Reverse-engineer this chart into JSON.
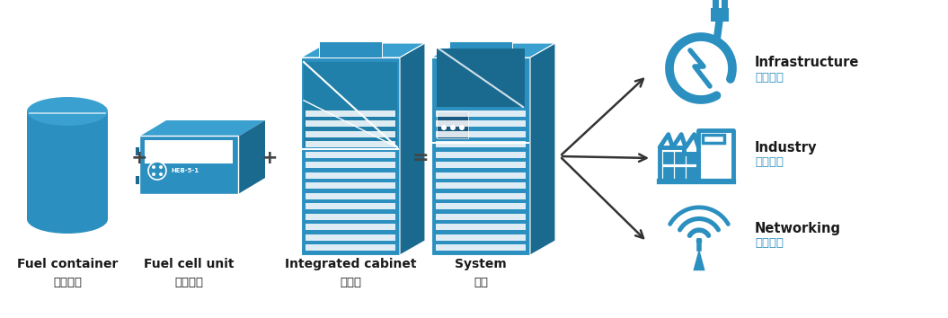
{
  "bg_color": "#ffffff",
  "teal": "#2b8fc0",
  "teal_dark": "#1a6a90",
  "teal_mid": "#2080aa",
  "arrow_color": "#333333",
  "figsize": [
    10.55,
    3.54
  ],
  "dpi": 100,
  "labels": {
    "fuel_container_en": "Fuel container",
    "fuel_container_zh": "燃料容器",
    "fuel_cell_en": "Fuel cell unit",
    "fuel_cell_zh": "电池单元",
    "integrated_en": "Integrated cabinet",
    "integrated_zh": "集成柜",
    "system_en": "System",
    "system_zh": "系统",
    "infra_en": "Infrastructure",
    "infra_zh": "基础设施",
    "industry_en": "Industry",
    "industry_zh": "工业制造",
    "networking_en": "Networking",
    "networking_zh": "网络通讯"
  }
}
